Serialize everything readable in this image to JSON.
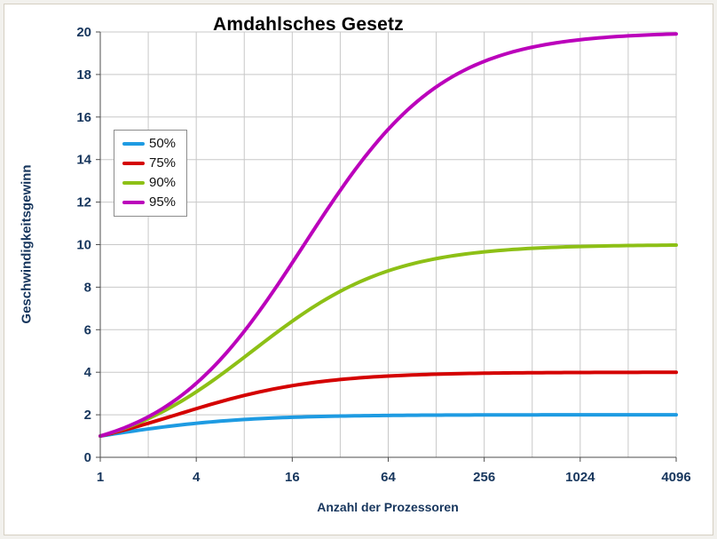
{
  "chart_data": {
    "type": "line",
    "title": "Amdahlsches Gesetz",
    "xlabel": "Anzahl der Prozessoren",
    "ylabel": "Geschwindigkeitsgewinn",
    "x_scale": "log2",
    "xlim": [
      1,
      4096
    ],
    "ylim": [
      0,
      20
    ],
    "y_tick_step": 2,
    "x_ticks": [
      1,
      4,
      16,
      64,
      256,
      1024,
      4096
    ],
    "grid": true,
    "legend_position": "upper-left-inside",
    "x": [
      1,
      2,
      4,
      8,
      16,
      32,
      64,
      128,
      256,
      512,
      1024,
      2048,
      4096
    ],
    "series": [
      {
        "name": "50%",
        "color": "#1e9be2",
        "parallel_fraction": 0.5,
        "values": [
          1,
          1.33,
          1.6,
          1.78,
          1.88,
          1.94,
          1.97,
          1.98,
          1.99,
          2.0,
          2.0,
          2.0,
          2.0
        ]
      },
      {
        "name": "75%",
        "color": "#d40000",
        "parallel_fraction": 0.75,
        "values": [
          1,
          1.6,
          2.29,
          2.91,
          3.37,
          3.66,
          3.82,
          3.91,
          3.95,
          3.98,
          3.99,
          3.99,
          4.0
        ]
      },
      {
        "name": "90%",
        "color": "#8dc016",
        "parallel_fraction": 0.9,
        "values": [
          1,
          1.82,
          3.08,
          4.71,
          6.4,
          7.8,
          8.77,
          9.34,
          9.66,
          9.83,
          9.91,
          9.96,
          9.98
        ]
      },
      {
        "name": "95%",
        "color": "#bb00bb",
        "parallel_fraction": 0.95,
        "values": [
          1,
          1.9,
          3.48,
          5.93,
          9.14,
          12.55,
          15.42,
          17.42,
          18.62,
          19.28,
          19.64,
          19.82,
          19.91
        ]
      }
    ],
    "colors": {
      "title": "#000000",
      "axis_text": "#17365d",
      "legend_text": "#111111",
      "grid": "#c8c8c8",
      "axis_line": "#4d4d4d",
      "legend_border": "#8c8c8c"
    }
  }
}
